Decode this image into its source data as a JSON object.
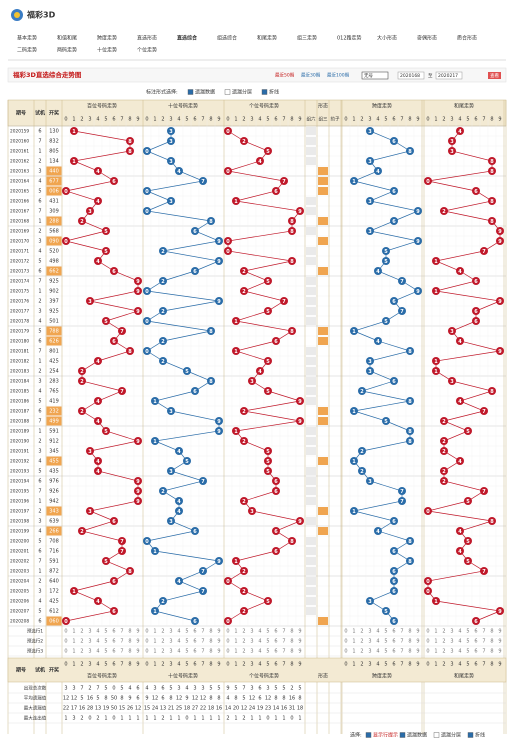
{
  "header": {
    "brand": "福彩3D",
    "nav": [
      "基本走势",
      "和值和尾",
      "跨度走势",
      "直选形态",
      "直选综合",
      "组选综合",
      "和尾走势",
      "组三走势",
      "012路走势",
      "大小形态",
      "奇偶形态",
      "质合形态",
      "二码走势",
      "两码走势",
      "十位走势",
      "个位走势"
    ],
    "active": 4
  },
  "toolbar": {
    "title": "福彩3D直选综合走势图",
    "recent": [
      "最近50期",
      "最近30期",
      "最近100期"
    ],
    "select": "无号",
    "from": "2020168",
    "to_label": "至",
    "to": "2020217",
    "button": "查看"
  },
  "options": {
    "label": "标注形式选择:",
    "items": [
      "遗漏数据",
      "遗漏分层",
      "折线"
    ],
    "checked": [
      true,
      false,
      true
    ]
  },
  "table": {
    "head": [
      "期号",
      "试机",
      "开奖"
    ],
    "sections": [
      "百位号码走势",
      "十位号码走势",
      "个位号码走势",
      "形态",
      "跨度走势",
      "和尾走势"
    ],
    "form_cols": [
      "组六",
      "组三",
      "豹子"
    ],
    "digits": [
      "0",
      "1",
      "2",
      "3",
      "4",
      "5",
      "6",
      "7",
      "8",
      "9"
    ],
    "rows": [
      [
        "2020159",
        "6",
        "130",
        1,
        3,
        0,
        3,
        4
      ],
      [
        "2020160",
        "7",
        "832",
        8,
        3,
        2,
        6,
        3
      ],
      [
        "2020161",
        "1",
        "805",
        8,
        0,
        5,
        8,
        3
      ],
      [
        "2020162",
        "2",
        "134",
        1,
        3,
        4,
        3,
        8
      ],
      [
        "2020163",
        "3",
        "440",
        4,
        4,
        0,
        4,
        8
      ],
      [
        "2020164",
        "4",
        "677",
        6,
        7,
        7,
        1,
        0
      ],
      [
        "2020165",
        "5",
        "006",
        0,
        0,
        6,
        6,
        6
      ],
      [
        "2020166",
        "6",
        "431",
        4,
        3,
        1,
        3,
        8
      ],
      [
        "2020167",
        "7",
        "309",
        3,
        0,
        9,
        9,
        2
      ],
      [
        "2020168",
        "1",
        "288",
        2,
        8,
        8,
        6,
        8
      ],
      [
        "2020169",
        "2",
        "568",
        5,
        6,
        8,
        3,
        9
      ],
      [
        "2020170",
        "3",
        "090",
        0,
        9,
        0,
        9,
        9
      ],
      [
        "2020171",
        "4",
        "520",
        5,
        2,
        0,
        5,
        7
      ],
      [
        "2020172",
        "5",
        "498",
        4,
        9,
        8,
        5,
        1
      ],
      [
        "2020173",
        "6",
        "662",
        6,
        6,
        2,
        4,
        4
      ],
      [
        "2020174",
        "7",
        "925",
        9,
        2,
        5,
        7,
        6
      ],
      [
        "2020175",
        "1",
        "902",
        9,
        0,
        2,
        9,
        1
      ],
      [
        "2020176",
        "2",
        "397",
        3,
        9,
        7,
        6,
        9
      ],
      [
        "2020177",
        "3",
        "925",
        9,
        2,
        5,
        7,
        6
      ],
      [
        "2020178",
        "4",
        "501",
        5,
        0,
        1,
        5,
        6
      ],
      [
        "2020179",
        "5",
        "788",
        7,
        8,
        8,
        1,
        3
      ],
      [
        "2020180",
        "6",
        "626",
        6,
        2,
        6,
        4,
        4
      ],
      [
        "2020181",
        "7",
        "801",
        8,
        0,
        1,
        8,
        9
      ],
      [
        "2020182",
        "1",
        "425",
        4,
        2,
        5,
        3,
        1
      ],
      [
        "2020183",
        "2",
        "254",
        2,
        5,
        4,
        3,
        1
      ],
      [
        "2020184",
        "3",
        "283",
        2,
        8,
        3,
        6,
        3
      ],
      [
        "2020185",
        "4",
        "765",
        7,
        6,
        5,
        2,
        8
      ],
      [
        "2020186",
        "5",
        "419",
        4,
        1,
        9,
        8,
        4
      ],
      [
        "2020187",
        "6",
        "232",
        2,
        3,
        2,
        1,
        7
      ],
      [
        "2020188",
        "7",
        "499",
        4,
        9,
        9,
        5,
        2
      ],
      [
        "2020189",
        "1",
        "591",
        5,
        9,
        1,
        8,
        5
      ],
      [
        "2020190",
        "2",
        "912",
        9,
        1,
        2,
        8,
        2
      ],
      [
        "2020191",
        "3",
        "345",
        3,
        4,
        5,
        2,
        2
      ],
      [
        "2020192",
        "4",
        "455",
        4,
        5,
        5,
        1,
        4
      ],
      [
        "2020193",
        "5",
        "435",
        4,
        3,
        5,
        2,
        2
      ],
      [
        "2020194",
        "6",
        "976",
        9,
        7,
        6,
        3,
        2
      ],
      [
        "2020195",
        "7",
        "926",
        9,
        2,
        6,
        7,
        7
      ],
      [
        "2020196",
        "1",
        "942",
        9,
        4,
        2,
        7,
        5
      ],
      [
        "2020197",
        "2",
        "343",
        3,
        4,
        3,
        1,
        0
      ],
      [
        "2020198",
        "3",
        "639",
        6,
        3,
        9,
        6,
        8
      ],
      [
        "2020199",
        "4",
        "266",
        2,
        6,
        6,
        4,
        4
      ],
      [
        "2020200",
        "5",
        "708",
        7,
        0,
        8,
        8,
        5
      ],
      [
        "2020201",
        "6",
        "716",
        7,
        1,
        6,
        6,
        4
      ],
      [
        "2020202",
        "7",
        "591",
        5,
        9,
        1,
        8,
        5
      ],
      [
        "2020203",
        "1",
        "872",
        8,
        7,
        2,
        6,
        7
      ],
      [
        "2020204",
        "2",
        "640",
        6,
        4,
        0,
        6,
        0
      ],
      [
        "2020205",
        "3",
        "172",
        1,
        7,
        2,
        6,
        0
      ],
      [
        "2020206",
        "4",
        "425",
        4,
        2,
        5,
        3,
        1
      ],
      [
        "2020207",
        "5",
        "612",
        6,
        1,
        2,
        5,
        9
      ],
      [
        "2020208",
        "6",
        "060",
        0,
        6,
        0,
        6,
        6
      ]
    ],
    "preselect": [
      "预选行1",
      "预选行2",
      "预选行3"
    ],
    "stats": [
      {
        "label": "出现总次数",
        "values": [
          3,
          3,
          7,
          2,
          7,
          5,
          0,
          5,
          4,
          6,
          4,
          3,
          6,
          5,
          3,
          4,
          3,
          3,
          5,
          5,
          9,
          5,
          7,
          3,
          6,
          3,
          5,
          5,
          2,
          5
        ]
      },
      {
        "label": "平均遗漏值",
        "values": [
          12,
          12,
          5,
          16,
          5,
          8,
          50,
          8,
          9,
          6,
          9,
          12,
          6,
          8,
          12,
          9,
          12,
          12,
          8,
          8,
          4,
          8,
          5,
          12,
          6,
          12,
          8,
          8,
          16,
          8
        ]
      },
      {
        "label": "最大遗漏值",
        "values": [
          22,
          17,
          16,
          28,
          13,
          19,
          50,
          15,
          26,
          12,
          15,
          24,
          13,
          21,
          25,
          18,
          27,
          22,
          18,
          16,
          14,
          20,
          12,
          24,
          19,
          23,
          14,
          16,
          31,
          18
        ]
      },
      {
        "label": "最大连出值",
        "values": [
          1,
          3,
          2,
          0,
          2,
          1,
          0,
          1,
          1,
          1,
          1,
          1,
          2,
          1,
          1,
          0,
          1,
          1,
          1,
          1,
          2,
          1,
          2,
          1,
          1,
          0,
          1,
          1,
          0,
          1
        ]
      }
    ]
  },
  "footer": {
    "label": "选择:",
    "items": [
      "显示行提示",
      "遗漏数据",
      "遗漏分层",
      "折线"
    ],
    "checked": [
      true,
      true,
      false,
      true
    ]
  }
}
